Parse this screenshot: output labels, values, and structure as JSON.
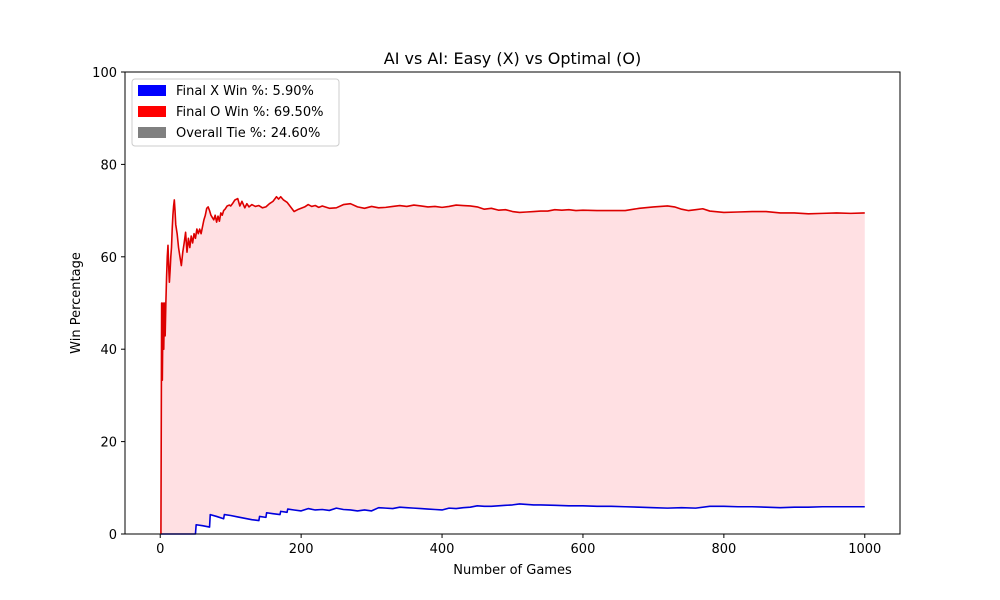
{
  "chart_data": {
    "type": "line",
    "title": "AI vs AI: Easy (X) vs Optimal (O)",
    "xlabel": "Number of Games",
    "ylabel": "Win Percentage",
    "xlim": [
      -50,
      1050
    ],
    "ylim": [
      0,
      100
    ],
    "xticks": [
      0,
      200,
      400,
      600,
      800,
      1000
    ],
    "yticks": [
      0,
      20,
      40,
      60,
      80,
      100
    ],
    "legend_position": "top-left",
    "grid": false,
    "fill_between_series": true,
    "fill_color": "#ffe0e3",
    "legend": [
      {
        "label": "Final X Win %: 5.90%",
        "color": "#0000ff"
      },
      {
        "label": "Final O Win %: 69.50%",
        "color": "#ff0000"
      },
      {
        "label": "Overall Tie %: 24.60%",
        "color": "#808080"
      }
    ],
    "series": [
      {
        "color": "#0000dd",
        "points": [
          [
            1,
            0
          ],
          [
            10,
            0
          ],
          [
            20,
            0
          ],
          [
            30,
            0
          ],
          [
            40,
            0
          ],
          [
            50,
            0
          ],
          [
            51,
            2
          ],
          [
            60,
            1.8
          ],
          [
            70,
            1.5
          ],
          [
            71,
            4.2
          ],
          [
            80,
            3.8
          ],
          [
            90,
            3.3
          ],
          [
            91,
            4.2
          ],
          [
            100,
            4.0
          ],
          [
            110,
            3.7
          ],
          [
            120,
            3.4
          ],
          [
            130,
            3.1
          ],
          [
            140,
            2.9
          ],
          [
            141,
            3.8
          ],
          [
            150,
            3.6
          ],
          [
            151,
            4.6
          ],
          [
            160,
            4.4
          ],
          [
            170,
            4.2
          ],
          [
            171,
            4.9
          ],
          [
            180,
            4.7
          ],
          [
            181,
            5.4
          ],
          [
            190,
            5.2
          ],
          [
            200,
            5.0
          ],
          [
            210,
            5.5
          ],
          [
            220,
            5.2
          ],
          [
            230,
            5.3
          ],
          [
            240,
            5.1
          ],
          [
            250,
            5.6
          ],
          [
            260,
            5.3
          ],
          [
            270,
            5.2
          ],
          [
            280,
            5.0
          ],
          [
            290,
            5.2
          ],
          [
            300,
            5.0
          ],
          [
            310,
            5.7
          ],
          [
            320,
            5.6
          ],
          [
            330,
            5.5
          ],
          [
            340,
            5.8
          ],
          [
            350,
            5.7
          ],
          [
            360,
            5.6
          ],
          [
            370,
            5.5
          ],
          [
            380,
            5.4
          ],
          [
            390,
            5.3
          ],
          [
            400,
            5.2
          ],
          [
            410,
            5.6
          ],
          [
            420,
            5.5
          ],
          [
            430,
            5.7
          ],
          [
            440,
            5.8
          ],
          [
            450,
            6.1
          ],
          [
            460,
            6.0
          ],
          [
            470,
            6.0
          ],
          [
            480,
            6.1
          ],
          [
            490,
            6.2
          ],
          [
            500,
            6.3
          ],
          [
            510,
            6.5
          ],
          [
            520,
            6.4
          ],
          [
            530,
            6.3
          ],
          [
            540,
            6.3
          ],
          [
            560,
            6.2
          ],
          [
            580,
            6.1
          ],
          [
            600,
            6.1
          ],
          [
            620,
            6.0
          ],
          [
            640,
            6.0
          ],
          [
            660,
            5.9
          ],
          [
            680,
            5.8
          ],
          [
            700,
            5.7
          ],
          [
            720,
            5.6
          ],
          [
            740,
            5.7
          ],
          [
            760,
            5.6
          ],
          [
            780,
            6.0
          ],
          [
            800,
            6.0
          ],
          [
            820,
            5.9
          ],
          [
            840,
            5.9
          ],
          [
            860,
            5.8
          ],
          [
            880,
            5.7
          ],
          [
            900,
            5.8
          ],
          [
            920,
            5.8
          ],
          [
            940,
            5.9
          ],
          [
            960,
            5.9
          ],
          [
            980,
            5.9
          ],
          [
            1000,
            5.9
          ]
        ]
      },
      {
        "color": "#dd0000",
        "points": [
          [
            1,
            0
          ],
          [
            2,
            50
          ],
          [
            3,
            33.3
          ],
          [
            4,
            50
          ],
          [
            5,
            40
          ],
          [
            6,
            50
          ],
          [
            7,
            42.9
          ],
          [
            8,
            50
          ],
          [
            9,
            55.6
          ],
          [
            10,
            60
          ],
          [
            11,
            62.5
          ],
          [
            12,
            58
          ],
          [
            13,
            54.5
          ],
          [
            14,
            57
          ],
          [
            15,
            60
          ],
          [
            16,
            62
          ],
          [
            17,
            66
          ],
          [
            18,
            69
          ],
          [
            19,
            71
          ],
          [
            20,
            72.3
          ],
          [
            21,
            70
          ],
          [
            22,
            67
          ],
          [
            24,
            65
          ],
          [
            26,
            62
          ],
          [
            28,
            60
          ],
          [
            30,
            58.1
          ],
          [
            32,
            61
          ],
          [
            34,
            63
          ],
          [
            36,
            65.3
          ],
          [
            38,
            61
          ],
          [
            40,
            64
          ],
          [
            42,
            62
          ],
          [
            44,
            64.5
          ],
          [
            46,
            63
          ],
          [
            48,
            65
          ],
          [
            50,
            64
          ],
          [
            52,
            66
          ],
          [
            54,
            65
          ],
          [
            56,
            66
          ],
          [
            58,
            65
          ],
          [
            60,
            66.5
          ],
          [
            62,
            68
          ],
          [
            64,
            69
          ],
          [
            66,
            70.5
          ],
          [
            68,
            70.8
          ],
          [
            70,
            70
          ],
          [
            72,
            69
          ],
          [
            74,
            68.5
          ],
          [
            76,
            68
          ],
          [
            78,
            69
          ],
          [
            80,
            67.5
          ],
          [
            82,
            68.8
          ],
          [
            84,
            67.7
          ],
          [
            86,
            69.5
          ],
          [
            88,
            69
          ],
          [
            90,
            70
          ],
          [
            92,
            70.3
          ],
          [
            95,
            71
          ],
          [
            98,
            71.2
          ],
          [
            100,
            71
          ],
          [
            103,
            71.6
          ],
          [
            106,
            72.3
          ],
          [
            110,
            72.6
          ],
          [
            113,
            71
          ],
          [
            116,
            72
          ],
          [
            120,
            70.6
          ],
          [
            123,
            71.5
          ],
          [
            126,
            70.8
          ],
          [
            130,
            71.3
          ],
          [
            135,
            70.9
          ],
          [
            140,
            71.1
          ],
          [
            145,
            70.6
          ],
          [
            150,
            70.8
          ],
          [
            155,
            71.5
          ],
          [
            160,
            72
          ],
          [
            165,
            73
          ],
          [
            168,
            72.5
          ],
          [
            171,
            73
          ],
          [
            175,
            72.3
          ],
          [
            180,
            71.8
          ],
          [
            185,
            70.8
          ],
          [
            190,
            69.8
          ],
          [
            195,
            70.2
          ],
          [
            200,
            70.5
          ],
          [
            205,
            70.8
          ],
          [
            210,
            71.3
          ],
          [
            215,
            70.9
          ],
          [
            220,
            71.1
          ],
          [
            225,
            70.7
          ],
          [
            230,
            71
          ],
          [
            240,
            70.5
          ],
          [
            250,
            70.6
          ],
          [
            260,
            71.3
          ],
          [
            270,
            71.5
          ],
          [
            280,
            70.8
          ],
          [
            290,
            70.5
          ],
          [
            300,
            70.9
          ],
          [
            310,
            70.6
          ],
          [
            320,
            70.7
          ],
          [
            330,
            70.9
          ],
          [
            340,
            71.1
          ],
          [
            350,
            70.9
          ],
          [
            360,
            71.2
          ],
          [
            370,
            71.0
          ],
          [
            380,
            70.8
          ],
          [
            390,
            70.9
          ],
          [
            400,
            70.7
          ],
          [
            410,
            70.9
          ],
          [
            420,
            71.2
          ],
          [
            430,
            71.1
          ],
          [
            440,
            71.0
          ],
          [
            450,
            70.8
          ],
          [
            460,
            70.3
          ],
          [
            470,
            70.5
          ],
          [
            480,
            70.1
          ],
          [
            490,
            70.2
          ],
          [
            500,
            69.8
          ],
          [
            510,
            69.6
          ],
          [
            520,
            69.7
          ],
          [
            530,
            69.8
          ],
          [
            540,
            69.9
          ],
          [
            550,
            69.9
          ],
          [
            560,
            70.2
          ],
          [
            570,
            70.1
          ],
          [
            580,
            70.2
          ],
          [
            590,
            70.0
          ],
          [
            600,
            70.1
          ],
          [
            620,
            70.0
          ],
          [
            640,
            70.0
          ],
          [
            660,
            70.0
          ],
          [
            680,
            70.5
          ],
          [
            700,
            70.8
          ],
          [
            720,
            71.0
          ],
          [
            730,
            70.8
          ],
          [
            740,
            70.3
          ],
          [
            750,
            70.0
          ],
          [
            760,
            70.2
          ],
          [
            770,
            70.4
          ],
          [
            780,
            69.9
          ],
          [
            800,
            69.6
          ],
          [
            820,
            69.7
          ],
          [
            840,
            69.8
          ],
          [
            860,
            69.8
          ],
          [
            880,
            69.5
          ],
          [
            900,
            69.5
          ],
          [
            920,
            69.3
          ],
          [
            940,
            69.4
          ],
          [
            960,
            69.5
          ],
          [
            980,
            69.4
          ],
          [
            1000,
            69.5
          ]
        ]
      }
    ]
  }
}
